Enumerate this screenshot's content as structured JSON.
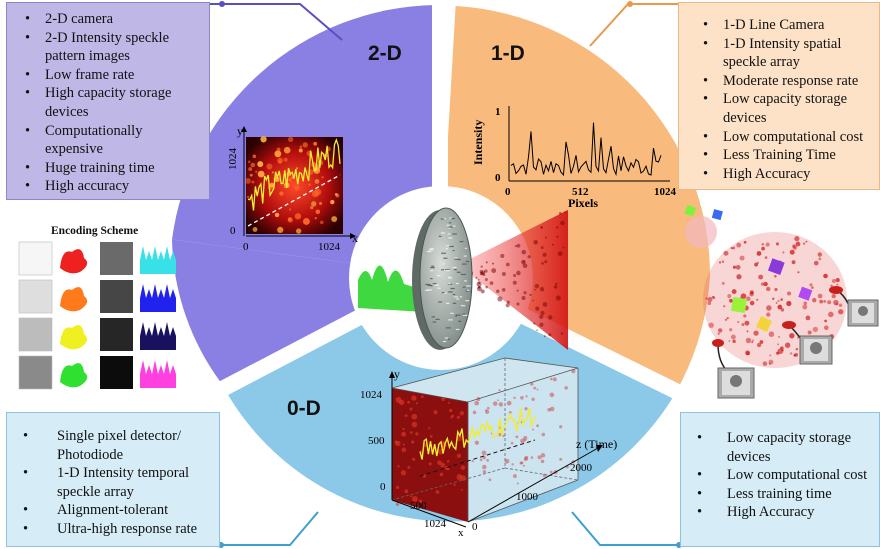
{
  "sector_titles": {
    "two_d": "2-D",
    "one_d": "1-D",
    "zero_d": "0-D"
  },
  "box_2d": [
    "2-D camera",
    "2-D Intensity speckle pattern images",
    "Low frame rate",
    "High capacity storage devices",
    "Computationally expensive",
    "Huge training time",
    "High accuracy"
  ],
  "box_1d": [
    "1-D Line Camera",
    "1-D Intensity spatial speckle array",
    "Moderate response rate",
    "Low capacity storage devices",
    "Low computational cost",
    "Less Training Time",
    "High Accuracy"
  ],
  "box_0d_left": [
    "Single pixel detector/ Photodiode",
    "1-D Intensity temporal speckle array",
    "Alignment-tolerant",
    "Ultra-high response rate"
  ],
  "box_0d_right": [
    "Low capacity storage devices",
    "Low computational cost",
    "Less training time",
    "High Accuracy"
  ],
  "encoding": {
    "title": "Encoding Scheme",
    "rows": [
      {
        "gray": "#f6f6f6",
        "dark": "#6a6a6a",
        "shape_a": "#ee2020",
        "shape_b": "#38e0e8"
      },
      {
        "gray": "#dedede",
        "dark": "#464646",
        "shape_a": "#ff7a1a",
        "shape_b": "#2222ee"
      },
      {
        "gray": "#bcbcbc",
        "dark": "#262626",
        "shape_a": "#f0f020",
        "shape_b": "#1a1060"
      },
      {
        "gray": "#8a8a8a",
        "dark": "#0c0c0c",
        "shape_a": "#30e030",
        "shape_b": "#ff40e0"
      }
    ]
  },
  "plot_1d": {
    "ylabel": "Intensity",
    "xlabel": "Pixels",
    "x_ticks": [
      "0",
      "512",
      "1024"
    ],
    "y_ticks": [
      "1",
      "0"
    ]
  },
  "plot_2d": {
    "x_axis": "x",
    "y_axis": "y",
    "x_ticks": [
      "0",
      "1024"
    ],
    "y_ticks": [
      "1024",
      "0"
    ]
  },
  "plot_0d": {
    "y_axis": "y",
    "x_axis": "x",
    "z_axis": "z (Time)",
    "y_ticks": [
      "1024",
      "500",
      "0"
    ],
    "z_ticks": [
      "2000",
      "1000"
    ],
    "x_ticks": [
      "500",
      "1024"
    ],
    "origin": "0"
  },
  "colors": {
    "two_d": "#8a7fe3",
    "one_d": "#f8ba7d",
    "zero_d": "#8cc9e8",
    "box_2d": "#bfb8e6",
    "box_1d": "#fde2c7",
    "box_0d": "#d6ecf6"
  }
}
